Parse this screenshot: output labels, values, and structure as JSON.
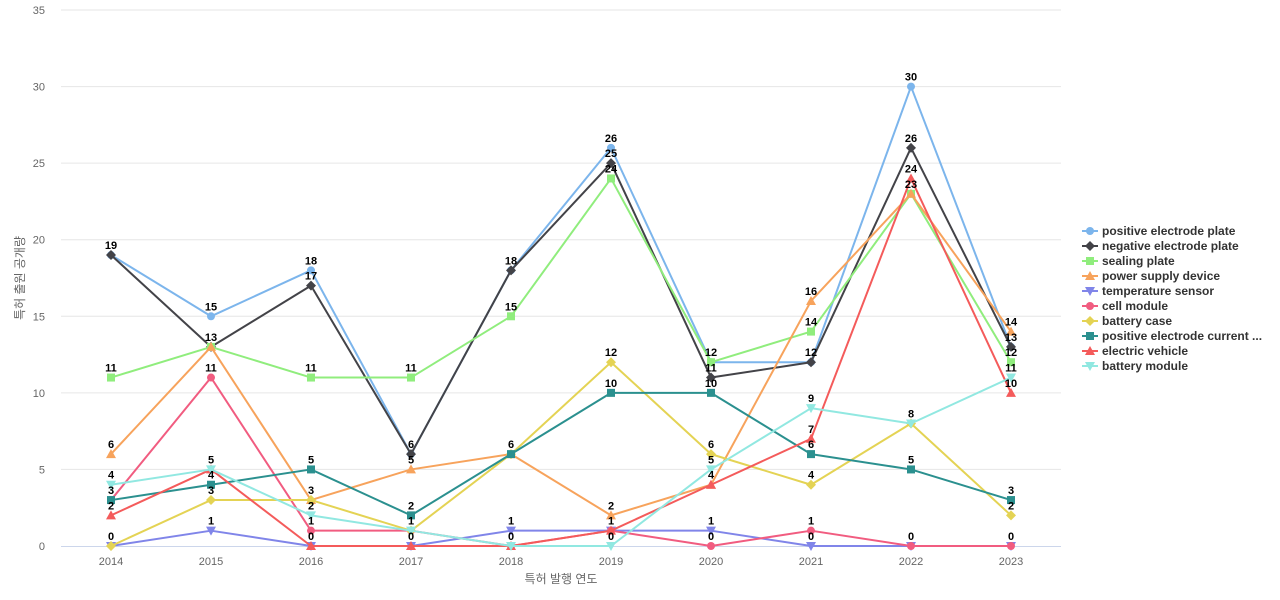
{
  "chart_data": {
    "type": "line",
    "title": "",
    "xlabel": "특허 발행 연도",
    "ylabel": "특허 출원 공개량",
    "categories": [
      "2014",
      "2015",
      "2016",
      "2017",
      "2018",
      "2019",
      "2020",
      "2021",
      "2022",
      "2023"
    ],
    "ylim": [
      0,
      35
    ],
    "yticks": [
      0,
      5,
      10,
      15,
      20,
      25,
      30,
      35
    ],
    "grid": "horizontal",
    "legend_position": "right",
    "series": [
      {
        "name": "positive electrode plate",
        "color": "#7cb5ec",
        "marker": "circle",
        "values": [
          19,
          15,
          18,
          6,
          18,
          26,
          12,
          12,
          30,
          13
        ]
      },
      {
        "name": "negative electrode plate",
        "color": "#434348",
        "marker": "diamond",
        "values": [
          19,
          13,
          17,
          6,
          18,
          25,
          11,
          12,
          26,
          13
        ]
      },
      {
        "name": "sealing plate",
        "color": "#90ed7d",
        "marker": "square",
        "values": [
          11,
          13,
          11,
          11,
          15,
          24,
          12,
          14,
          23,
          12
        ]
      },
      {
        "name": "power supply device",
        "color": "#f7a35c",
        "marker": "triangle",
        "values": [
          6,
          13,
          3,
          5,
          6,
          2,
          4,
          16,
          23,
          14
        ]
      },
      {
        "name": "temperature sensor",
        "color": "#8085e9",
        "marker": "triangle-down",
        "values": [
          0,
          1,
          0,
          0,
          1,
          1,
          1,
          0,
          0,
          0
        ]
      },
      {
        "name": "cell module",
        "color": "#f15c80",
        "marker": "circle",
        "values": [
          3,
          11,
          1,
          1,
          0,
          1,
          0,
          1,
          0,
          0
        ]
      },
      {
        "name": "battery case",
        "color": "#e4d354",
        "marker": "diamond",
        "values": [
          0,
          3,
          3,
          1,
          6,
          12,
          6,
          4,
          8,
          2
        ]
      },
      {
        "name": "positive electrode current ...",
        "color": "#2b908f",
        "marker": "square",
        "values": [
          3,
          4,
          5,
          2,
          6,
          10,
          10,
          6,
          5,
          3
        ]
      },
      {
        "name": "electric vehicle",
        "color": "#f45b5b",
        "marker": "triangle",
        "values": [
          2,
          5,
          0,
          0,
          0,
          1,
          4,
          7,
          24,
          10
        ]
      },
      {
        "name": "battery module",
        "color": "#91e8e1",
        "marker": "triangle-down",
        "values": [
          4,
          5,
          2,
          1,
          0,
          0,
          5,
          9,
          8,
          11
        ]
      }
    ]
  }
}
